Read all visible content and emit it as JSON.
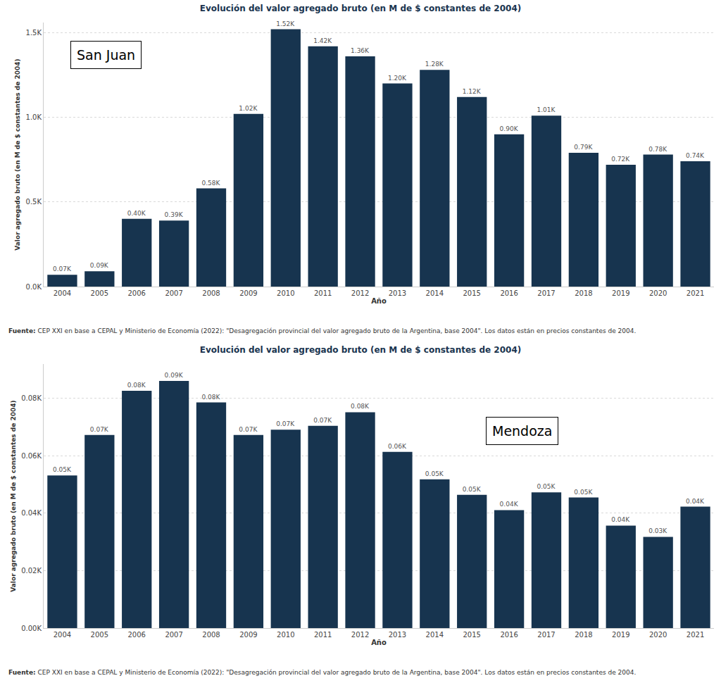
{
  "chart_data": [
    {
      "type": "bar",
      "title": "Evolución del valor agregado bruto (en M de $ constantes de 2004)",
      "x_label": "Año",
      "y_label": "Valor agregado bruto (en M de $ constantes de 2004)",
      "annotation": "San Juan",
      "source_label": "Fuente:",
      "source": "CEP XXI en base a CEPAL y Ministerio de Economía (2022): \"Desagregación provincial del valor agregado bruto de la Argentina, base 2004\". Los datos están en precios constantes de 2004.",
      "categories": [
        "2004",
        "2005",
        "2006",
        "2007",
        "2008",
        "2009",
        "2010",
        "2011",
        "2012",
        "2013",
        "2014",
        "2015",
        "2016",
        "2017",
        "2018",
        "2019",
        "2020",
        "2021"
      ],
      "values": [
        70,
        90,
        400,
        390,
        580,
        1020,
        1520,
        1420,
        1360,
        1200,
        1280,
        1120,
        900,
        1010,
        790,
        720,
        780,
        740
      ],
      "value_labels": [
        "0.07K",
        "0.09K",
        "0.40K",
        "0.39K",
        "0.58K",
        "1.02K",
        "1.52K",
        "1.42K",
        "1.36K",
        "1.20K",
        "1.28K",
        "1.12K",
        "0.90K",
        "1.01K",
        "0.79K",
        "0.72K",
        "0.78K",
        "0.74K"
      ],
      "color": "#17344f",
      "ylim": [
        0,
        1560
      ],
      "yticks": [
        {
          "value": 0,
          "label": "0.0K"
        },
        {
          "value": 500,
          "label": "0.5K"
        },
        {
          "value": 1000,
          "label": "1.0K"
        },
        {
          "value": 1500,
          "label": "1.5K"
        }
      ],
      "grid": true,
      "data_labels": true
    },
    {
      "type": "bar",
      "title": "Evolución del valor agregado bruto (en M de $ constantes de 2004)",
      "x_label": "Año",
      "y_label": "Valor agregado bruto (en M de $ constantes de 2004)",
      "annotation": "Mendoza",
      "source_label": "Fuente:",
      "source": "CEP XXI en base a CEPAL y Ministerio de Economía (2022): \"Desagregación provincial del valor agregado bruto de la Argentina, base 2004\". Los datos están en precios constantes de 2004.",
      "categories": [
        "2004",
        "2005",
        "2006",
        "2007",
        "2008",
        "2009",
        "2010",
        "2011",
        "2012",
        "2013",
        "2014",
        "2015",
        "2016",
        "2017",
        "2018",
        "2019",
        "2020",
        "2021"
      ],
      "values": [
        53.2,
        67.3,
        82.7,
        86.1,
        78.6,
        67.3,
        69.1,
        70.5,
        75.2,
        61.4,
        51.8,
        46.4,
        41.1,
        47.3,
        45.5,
        35.7,
        31.8,
        42.3
      ],
      "value_labels": [
        "0.05K",
        "0.07K",
        "0.08K",
        "0.09K",
        "0.08K",
        "0.07K",
        "0.07K",
        "0.07K",
        "0.08K",
        "0.06K",
        "0.05K",
        "0.05K",
        "0.04K",
        "0.05K",
        "0.05K",
        "0.04K",
        "0.03K",
        "0.04K"
      ],
      "color": "#17344f",
      "ylim": [
        0,
        92
      ],
      "yticks": [
        {
          "value": 0,
          "label": "0.00K"
        },
        {
          "value": 20,
          "label": "0.02K"
        },
        {
          "value": 40,
          "label": "0.04K"
        },
        {
          "value": 60,
          "label": "0.06K"
        },
        {
          "value": 80,
          "label": "0.08K"
        }
      ],
      "grid": true,
      "data_labels": true
    }
  ]
}
